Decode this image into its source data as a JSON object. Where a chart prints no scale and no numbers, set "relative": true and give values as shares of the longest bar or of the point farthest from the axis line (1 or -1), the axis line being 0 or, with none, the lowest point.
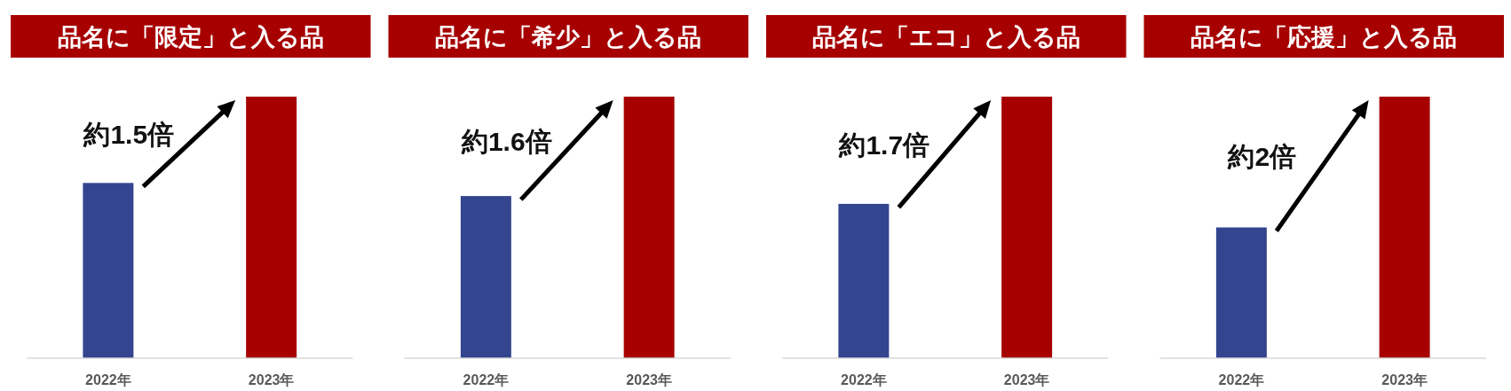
{
  "chart_data": [
    {
      "type": "bar",
      "title": "品名に「限定」と入る品",
      "categories": [
        "2022年",
        "2023年"
      ],
      "values": [
        0.67,
        1
      ],
      "colors": [
        "#33458f",
        "#a60000"
      ],
      "relative": true,
      "annotations": [
        "約1.5倍"
      ]
    },
    {
      "type": "bar",
      "title": "品名に「希少」と入る品",
      "categories": [
        "2022年",
        "2023年"
      ],
      "values": [
        0.62,
        1
      ],
      "colors": [
        "#33458f",
        "#a60000"
      ],
      "relative": true,
      "annotations": [
        "約1.6倍"
      ]
    },
    {
      "type": "bar",
      "title": "品名に「エコ」と入る品",
      "categories": [
        "2022年",
        "2023年"
      ],
      "values": [
        0.59,
        1
      ],
      "colors": [
        "#33458f",
        "#a60000"
      ],
      "relative": true,
      "annotations": [
        "約1.7倍"
      ]
    },
    {
      "type": "bar",
      "title": "品名に「応援」と入る品",
      "categories": [
        "2022年",
        "2023年"
      ],
      "values": [
        0.5,
        1
      ],
      "colors": [
        "#33458f",
        "#a60000"
      ],
      "relative": true,
      "annotations": [
        "約2倍"
      ]
    }
  ]
}
